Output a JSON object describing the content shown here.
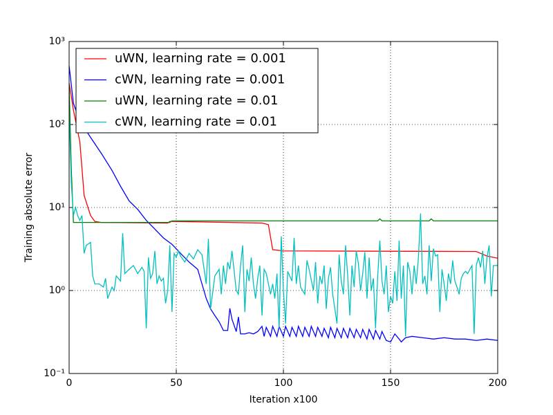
{
  "chart_data": {
    "type": "line",
    "xlabel": "Iteration x100",
    "ylabel": "Training absolute error",
    "xlim": [
      0,
      200
    ],
    "xticks": [
      0,
      50,
      100,
      150,
      200
    ],
    "ylim": [
      0.1,
      1000
    ],
    "ylog": true,
    "yticks": [
      {
        "value": 0.1,
        "label": "10⁻¹"
      },
      {
        "value": 1,
        "label": "10⁰"
      },
      {
        "value": 10,
        "label": "10¹"
      },
      {
        "value": 100,
        "label": "10²"
      },
      {
        "value": 1000,
        "label": "10³"
      }
    ],
    "grid": true,
    "legend": "upper left",
    "series": [
      {
        "name": "uWN, learning rate = 0.001",
        "color": "#ff0000",
        "x": [
          0,
          2,
          5,
          7,
          10,
          12,
          15,
          46,
          47,
          90,
          93,
          95,
          100,
          190,
          195,
          200
        ],
        "values": [
          316,
          150,
          62,
          14,
          8,
          6.8,
          6.6,
          6.5,
          6.8,
          6.5,
          6.2,
          3.1,
          3.0,
          2.95,
          2.6,
          2.45
        ]
      },
      {
        "name": "cWN, learning rate = 0.001",
        "color": "#0000ff",
        "x": [
          0,
          2,
          5,
          10,
          15,
          20,
          24,
          28,
          32,
          36,
          40,
          44,
          48,
          52,
          56,
          60,
          62,
          64,
          66,
          68,
          70,
          72,
          74,
          75,
          76,
          78,
          79,
          80,
          82,
          84,
          86,
          88,
          90,
          91,
          92,
          94,
          95,
          97,
          98,
          100,
          101,
          103,
          104,
          106,
          107,
          109,
          110,
          112,
          113,
          115,
          116,
          118,
          119,
          121,
          122,
          124,
          125,
          127,
          128,
          130,
          131,
          133,
          134,
          136,
          137,
          139,
          140,
          142,
          143,
          145,
          146,
          148,
          150,
          152,
          154,
          155,
          157,
          160,
          165,
          170,
          175,
          180,
          185,
          190,
          195,
          200
        ],
        "values": [
          510,
          180,
          110,
          70,
          45,
          28,
          18,
          12,
          9.5,
          7,
          5.5,
          4.3,
          3.6,
          2.8,
          2.2,
          1.8,
          1.2,
          0.8,
          0.6,
          0.5,
          0.42,
          0.33,
          0.33,
          0.61,
          0.45,
          0.32,
          0.48,
          0.3,
          0.3,
          0.31,
          0.3,
          0.32,
          0.37,
          0.28,
          0.36,
          0.28,
          0.37,
          0.28,
          0.37,
          0.28,
          0.37,
          0.28,
          0.36,
          0.28,
          0.37,
          0.28,
          0.36,
          0.28,
          0.37,
          0.28,
          0.36,
          0.28,
          0.35,
          0.27,
          0.36,
          0.27,
          0.35,
          0.27,
          0.35,
          0.27,
          0.35,
          0.27,
          0.34,
          0.27,
          0.34,
          0.26,
          0.34,
          0.26,
          0.33,
          0.26,
          0.32,
          0.25,
          0.24,
          0.3,
          0.26,
          0.24,
          0.27,
          0.28,
          0.27,
          0.26,
          0.27,
          0.26,
          0.26,
          0.25,
          0.26,
          0.25
        ]
      },
      {
        "name": "uWN, learning rate = 0.01",
        "color": "#008000",
        "x": [
          0,
          1,
          2,
          47,
          48,
          144,
          145,
          146,
          168,
          169,
          170,
          200
        ],
        "values": [
          300,
          30,
          6.6,
          6.6,
          6.9,
          6.9,
          7.3,
          6.9,
          6.9,
          7.3,
          6.9,
          6.9
        ]
      },
      {
        "name": "cWN, learning rate = 0.01",
        "color": "#00bfbf",
        "x": [
          0,
          1,
          2,
          3,
          4,
          5,
          6,
          7,
          8,
          10,
          11,
          12,
          14,
          16,
          17,
          18,
          20,
          21,
          22,
          24,
          25,
          26,
          28,
          30,
          32,
          34,
          35,
          36,
          37,
          38,
          39,
          40,
          41,
          42,
          43,
          44,
          45,
          46,
          47,
          48,
          49,
          50,
          51,
          52,
          54,
          56,
          58,
          60,
          62,
          64,
          65,
          66,
          68,
          70,
          71,
          72,
          73,
          74,
          75,
          76,
          78,
          79,
          80,
          81,
          82,
          83,
          84,
          85,
          86,
          87,
          88,
          89,
          90,
          91,
          92,
          94,
          95,
          96,
          97,
          98,
          99,
          100,
          101,
          102,
          104,
          105,
          106,
          107,
          108,
          110,
          111,
          112,
          114,
          115,
          116,
          117,
          118,
          119,
          120,
          121,
          122,
          123,
          125,
          126,
          127,
          128,
          129,
          130,
          131,
          132,
          133,
          134,
          135,
          136,
          137,
          138,
          139,
          140,
          141,
          142,
          143,
          144,
          145,
          146,
          147,
          148,
          149,
          150,
          151,
          152,
          153,
          154,
          155,
          156,
          157,
          158,
          159,
          160,
          161,
          162,
          163,
          164,
          165,
          166,
          167,
          168,
          169,
          170,
          171,
          172,
          173,
          174,
          175,
          176,
          177,
          178,
          179,
          180,
          181,
          182,
          183,
          184,
          185,
          186,
          187,
          188,
          189,
          190,
          191,
          192,
          193,
          194,
          195,
          196,
          197,
          198,
          199,
          200
        ],
        "values": [
          150,
          20,
          8,
          10,
          8,
          7,
          8,
          2.8,
          3.5,
          3.8,
          1.5,
          1.2,
          1.2,
          1.1,
          1.4,
          0.8,
          1.1,
          1.0,
          1.5,
          1.3,
          4.9,
          1.6,
          1.8,
          2.0,
          1.6,
          1.9,
          1.7,
          0.35,
          2.5,
          1.4,
          1.6,
          3.0,
          1.2,
          1.5,
          1.3,
          1.4,
          0.7,
          1.0,
          3.5,
          0.55,
          2.8,
          2.5,
          3.0,
          2.6,
          2.2,
          2.8,
          2.4,
          3.1,
          2.7,
          1.2,
          4.2,
          0.6,
          1.5,
          1.8,
          0.9,
          2.0,
          1.2,
          2.2,
          1.8,
          3.0,
          1.0,
          0.9,
          2.0,
          3.5,
          0.55,
          1.8,
          1.3,
          2.5,
          1.2,
          0.8,
          1.4,
          2.0,
          0.5,
          1.8,
          1.6,
          0.9,
          1.2,
          0.8,
          1.6,
          0.35,
          4.5,
          1.0,
          0.4,
          1.7,
          1.3,
          4.3,
          1.2,
          2.0,
          1.1,
          0.9,
          2.3,
          1.8,
          1.0,
          2.2,
          0.7,
          1.5,
          1.2,
          2.0,
          0.6,
          1.4,
          1.9,
          0.9,
          0.4,
          2.7,
          1.3,
          0.9,
          3.5,
          1.5,
          0.5,
          2.0,
          1.1,
          3.0,
          2.1,
          1.0,
          1.6,
          2.9,
          0.8,
          2.5,
          1.0,
          1.4,
          0.35,
          1.5,
          4.0,
          1.3,
          0.9,
          2.0,
          0.55,
          0.85,
          0.7,
          1.7,
          0.75,
          4.0,
          0.8,
          2.0,
          0.28,
          2.2,
          1.7,
          0.9,
          2.0,
          1.2,
          2.5,
          8.5,
          1.2,
          1.5,
          0.9,
          3.5,
          1.3,
          3.2,
          2.6,
          2.7,
          0.55,
          1.8,
          1.2,
          0.75,
          1.6,
          1.2,
          2.3,
          1.3,
          1.1,
          0.9,
          1.4,
          1.6,
          1.7,
          1.6,
          1.8,
          2.0,
          0.3,
          2.0,
          2.5,
          1.9,
          3.0,
          1.2,
          2.5,
          3.5,
          0.85,
          2.0,
          2.0,
          2.0
        ]
      }
    ]
  }
}
